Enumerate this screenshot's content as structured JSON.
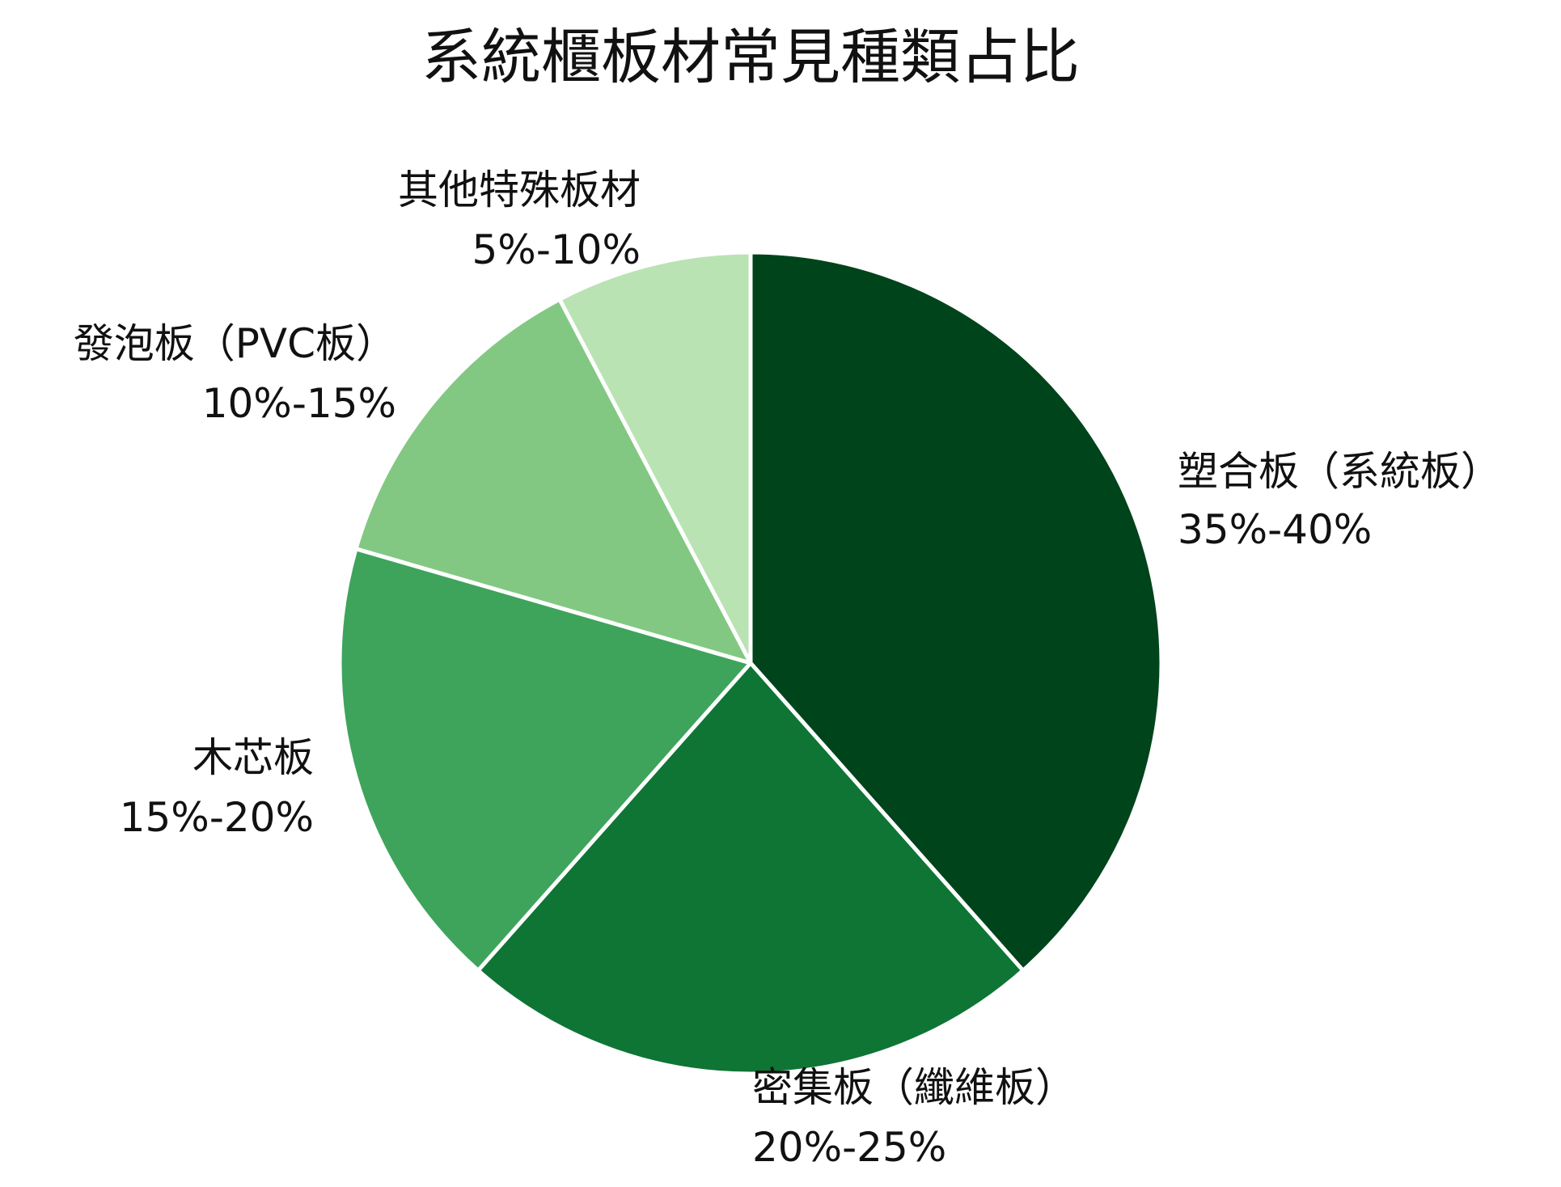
{
  "chart_data": {
    "type": "pie",
    "title": "系統櫃板材常見種類占比",
    "start": "top",
    "direction": "clockwise",
    "slices": [
      {
        "name": "塑合板（系統板）",
        "range_label": "35%-40%",
        "value": 37.5,
        "color": "#00441b"
      },
      {
        "name": "密集板（纖維板）",
        "range_label": "20%-25%",
        "value": 22.5,
        "color": "#0e7535"
      },
      {
        "name": "木芯板",
        "range_label": "15%-20%",
        "value": 17.5,
        "color": "#3ea45b"
      },
      {
        "name": "發泡板（PVC板）",
        "range_label": "10%-15%",
        "value": 12.5,
        "color": "#82c882"
      },
      {
        "name": "其他特殊板材",
        "range_label": "5%-10%",
        "value": 7.5,
        "color": "#b9e3b3"
      }
    ]
  }
}
